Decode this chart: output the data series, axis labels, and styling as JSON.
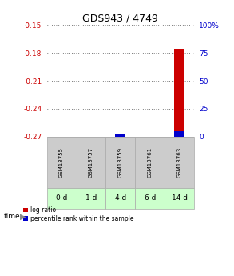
{
  "title": "GDS943 / 4749",
  "samples": [
    "GSM13755",
    "GSM13757",
    "GSM13759",
    "GSM13761",
    "GSM13763"
  ],
  "time_labels": [
    "0 d",
    "1 d",
    "4 d",
    "6 d",
    "14 d"
  ],
  "log_ratio": [
    null,
    null,
    -0.269,
    null,
    -0.176
  ],
  "percentile_rank": [
    null,
    null,
    2.0,
    null,
    5.0
  ],
  "ylim_left": [
    -0.27,
    -0.15
  ],
  "ylim_right": [
    0,
    100
  ],
  "yticks_left": [
    -0.27,
    -0.24,
    -0.21,
    -0.18,
    -0.15
  ],
  "yticks_right": [
    0,
    25,
    50,
    75,
    100
  ],
  "left_axis_color": "#cc0000",
  "right_axis_color": "#0000cc",
  "bar_color_log": "#cc0000",
  "bar_color_pct": "#0000cc",
  "grid_color": "#000000",
  "bg_plot": "#ffffff",
  "bg_sample_row": "#cccccc",
  "bg_time_row": "#ccffcc",
  "legend_log_label": "log ratio",
  "legend_pct_label": "percentile rank within the sample",
  "bar_width": 0.35
}
